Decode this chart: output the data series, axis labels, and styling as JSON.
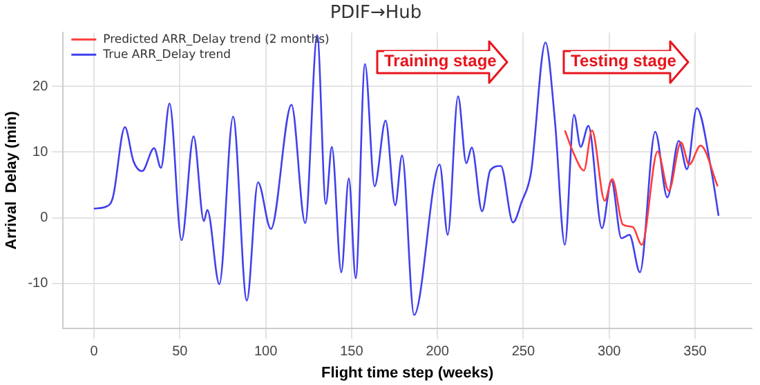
{
  "chart_data": {
    "type": "line",
    "title": "PDIF→Hub",
    "xlabel": "Flight time step (weeks)",
    "ylabel": "Arrival  Delay (min)",
    "annotations": [
      "Training stage",
      "Testing stage"
    ],
    "legend": "top left",
    "grid": true,
    "xlim": [
      -18,
      383
    ],
    "ylim": [
      -16.8,
      28.2
    ],
    "xticks": [
      0,
      50,
      100,
      150,
      200,
      250,
      300,
      350
    ],
    "yticks": [
      -10,
      0,
      10,
      20
    ],
    "series": [
      {
        "name": "Predicted ARR_Delay trend (2 months)",
        "color": "#ff3b3b",
        "x": [
          274.2,
          279.5,
          285.3,
          290,
          297.4,
          301.8,
          307.9,
          313.7,
          319,
          328.2,
          334.7,
          341.8,
          346.6,
          353.2,
          363.2
        ],
        "values": [
          13.3,
          9.7,
          7.2,
          13.3,
          2.6,
          5.9,
          -1.0,
          -1.4,
          -4.1,
          10.1,
          4.1,
          11.5,
          8.1,
          11.0,
          4.8
        ]
      },
      {
        "name": "True ARR_Delay trend",
        "color": "#4040ee",
        "x": [
          0,
          7,
          11,
          18,
          23,
          28,
          35,
          39,
          44,
          51,
          58,
          64,
          66,
          73,
          81,
          89,
          95.5,
          103,
          115,
          123,
          130,
          135,
          138.5,
          144,
          148.4,
          152.4,
          157.8,
          163.4,
          169.8,
          175.4,
          179.4,
          186.4,
          201.3,
          206,
          212,
          216.8,
          220,
          226,
          230.7,
          236.9,
          244,
          249,
          254.5,
          262.9,
          268.4,
          274.2,
          279.5,
          283.4,
          287.9,
          295.8,
          301.3,
          307.1,
          311.8,
          317.9,
          326.8,
          333.9,
          340.5,
          345.3,
          351,
          359.7,
          363.7
        ],
        "values": [
          1.4,
          1.7,
          3.1,
          13.8,
          8.6,
          7.1,
          10.6,
          7.6,
          17.4,
          -3.4,
          12.4,
          -0.5,
          1.2,
          -10.1,
          15.4,
          -12.6,
          5.4,
          -1.7,
          17.2,
          -0.8,
          27.8,
          2.1,
          10.8,
          -8.3,
          6.0,
          -9.2,
          23.4,
          4.8,
          14.8,
          1.9,
          9.5,
          -14.8,
          8.1,
          -2.6,
          18.5,
          8.3,
          10.7,
          1.0,
          7.2,
          7.9,
          -0.7,
          2.4,
          6.9,
          26.7,
          14.8,
          -4.1,
          15.7,
          10.8,
          14.0,
          -1.6,
          5.7,
          -3.1,
          -2.6,
          -8.3,
          13.1,
          3.1,
          11.7,
          7.4,
          16.7,
          6.9,
          0.3
        ]
      }
    ]
  }
}
